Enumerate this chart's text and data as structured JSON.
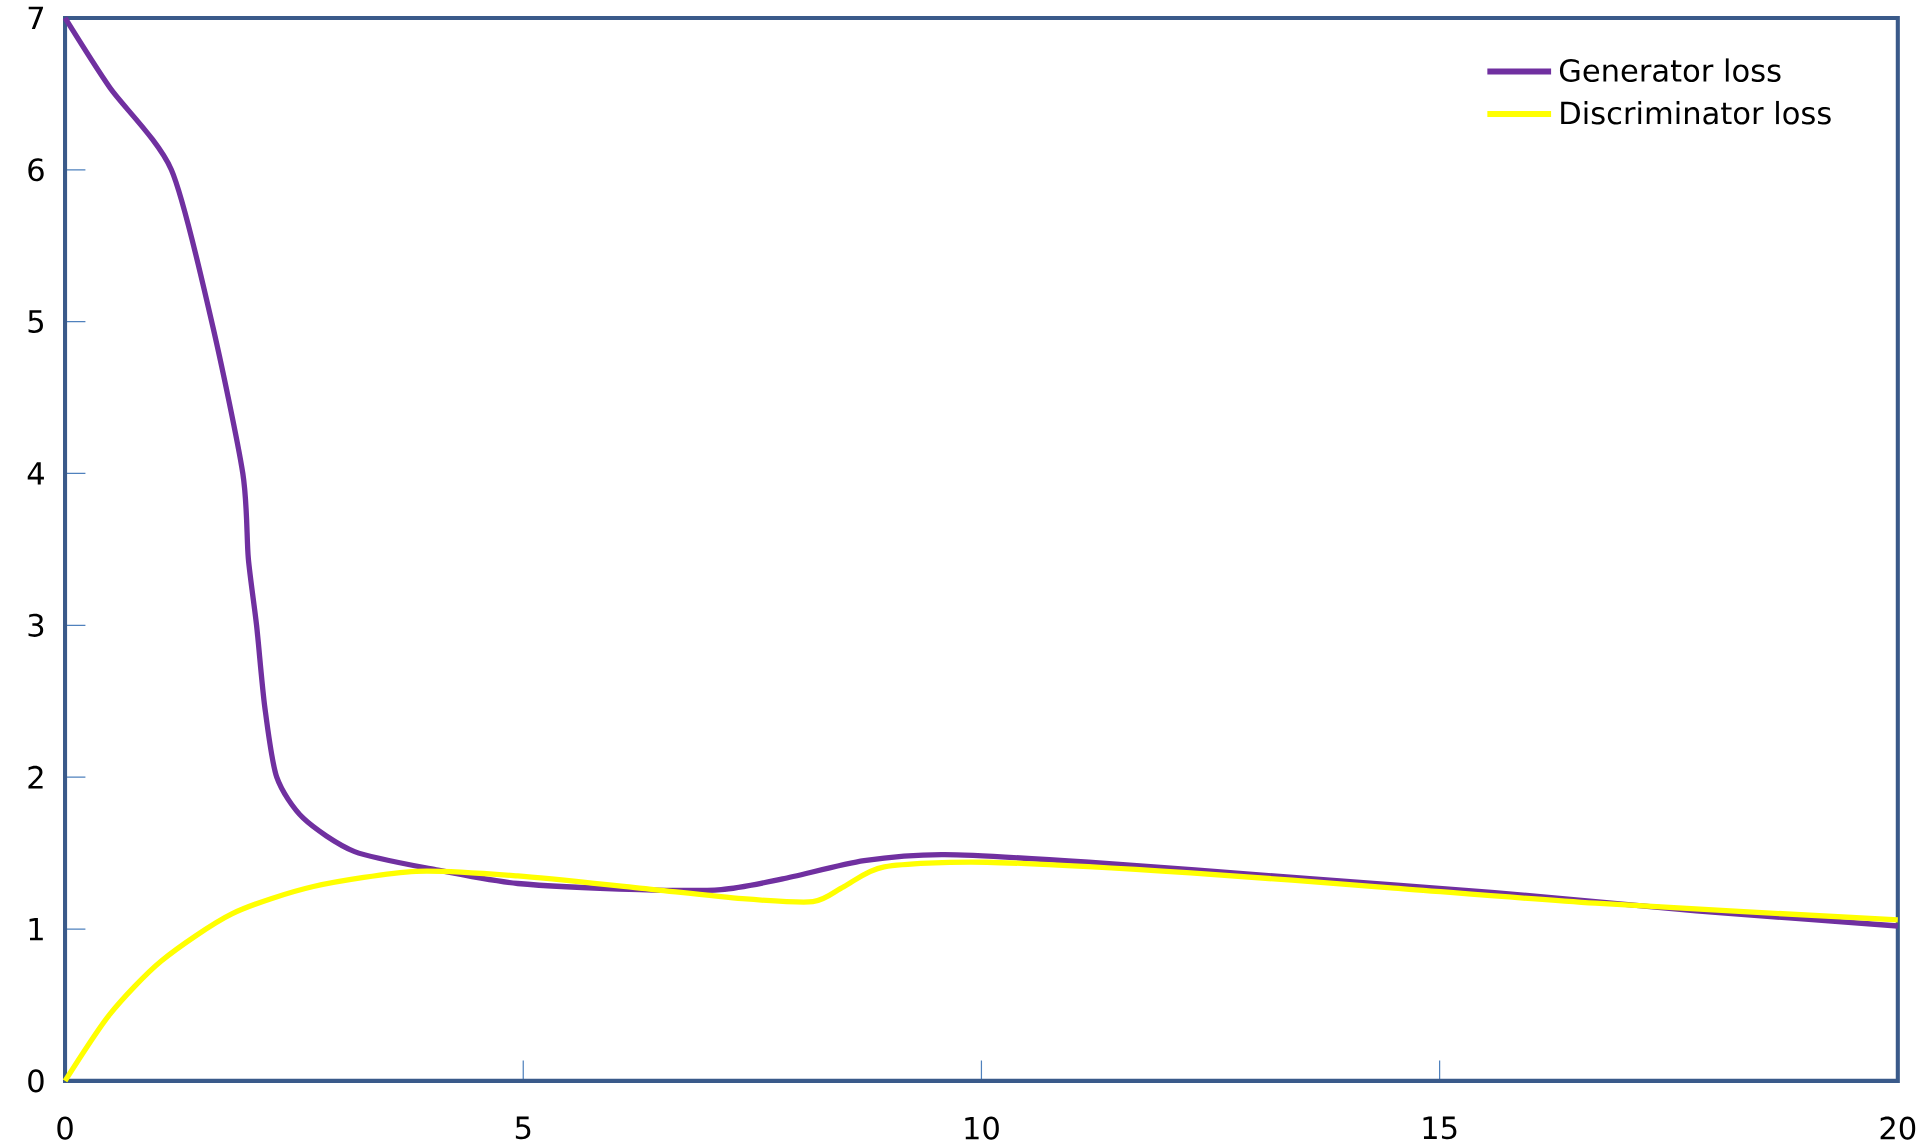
{
  "chart_data": {
    "type": "line",
    "xlim": [
      0,
      20
    ],
    "ylim": [
      0,
      7
    ],
    "xticks": [
      0,
      5,
      10,
      15,
      20
    ],
    "yticks": [
      0,
      1,
      2,
      3,
      4,
      5,
      6,
      7
    ],
    "grid": false,
    "legend": "top right",
    "series": [
      {
        "name": "Generator loss",
        "color": "#7030a0",
        "x": [
          0,
          0.49,
          1.16,
          1.6,
          1.94,
          2.0,
          2.09,
          2.18,
          2.31,
          2.6,
          3.16,
          4.05,
          4.94,
          6.27,
          7.16,
          7.83,
          8.72,
          9.6,
          11.17,
          13.4,
          15.6,
          17.8,
          20
        ],
        "values": [
          7.0,
          6.54,
          6.0,
          5.0,
          4.0,
          3.44,
          3.0,
          2.46,
          2.0,
          1.73,
          1.51,
          1.39,
          1.3,
          1.26,
          1.26,
          1.33,
          1.45,
          1.49,
          1.44,
          1.34,
          1.24,
          1.12,
          1.02
        ]
      },
      {
        "name": "Discriminator loss",
        "color": "#ffff00",
        "x": [
          0,
          0.49,
          1.05,
          1.82,
          2.71,
          3.83,
          4.94,
          6.27,
          7.39,
          8.16,
          8.5,
          8.94,
          10.06,
          12.28,
          14.5,
          16.7,
          20
        ],
        "values": [
          0,
          0.44,
          0.79,
          1.1,
          1.28,
          1.38,
          1.35,
          1.27,
          1.2,
          1.18,
          1.28,
          1.41,
          1.44,
          1.37,
          1.27,
          1.17,
          1.06
        ]
      }
    ]
  }
}
